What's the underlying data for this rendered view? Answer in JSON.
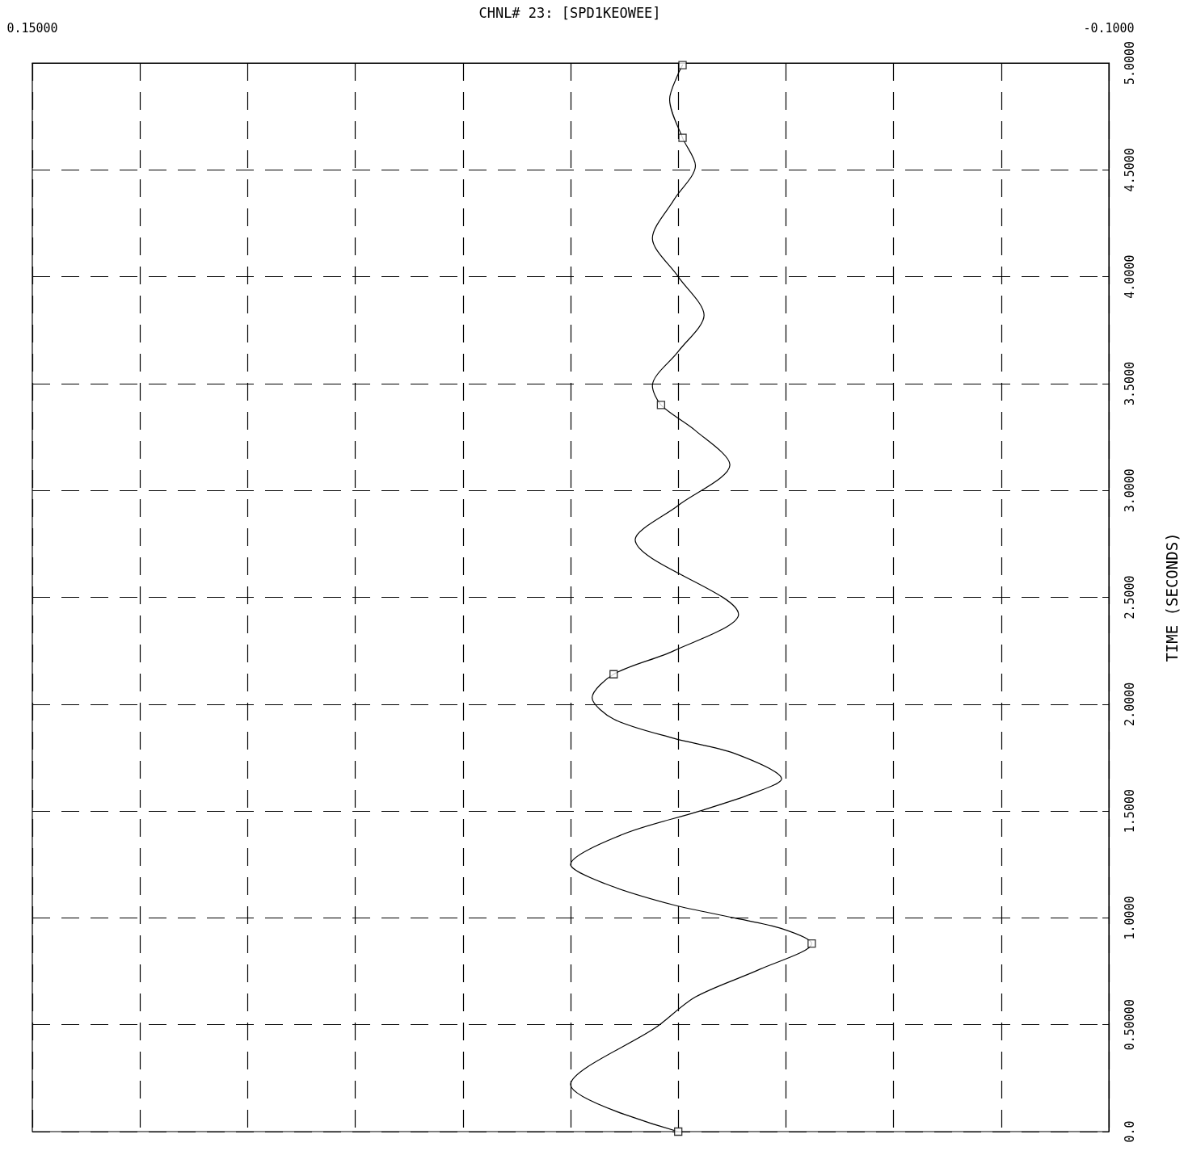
{
  "chart_data": {
    "type": "line",
    "title": "CHNL# 23: [SPD1KEOWEE]",
    "ylabel": "TIME (SECONDS)",
    "xlim": [
      0.15,
      -0.1
    ],
    "xticks": [
      {
        "value": 0.15,
        "label": "0.15000"
      },
      {
        "value": 0.125,
        "label": null
      },
      {
        "value": 0.1,
        "label": null
      },
      {
        "value": 0.075,
        "label": null
      },
      {
        "value": 0.05,
        "label": null
      },
      {
        "value": 0.025,
        "label": null
      },
      {
        "value": 0,
        "label": null
      },
      {
        "value": -0.025,
        "label": null
      },
      {
        "value": -0.05,
        "label": null
      },
      {
        "value": -0.075,
        "label": null
      },
      {
        "value": -0.1,
        "label": "-0.1000"
      }
    ],
    "ylim": [
      0,
      5
    ],
    "yticks": [
      {
        "value": 0,
        "label": "0.0"
      },
      {
        "value": 0.5,
        "label": "0.50000"
      },
      {
        "value": 1,
        "label": "1.0000"
      },
      {
        "value": 1.5,
        "label": "1.5000"
      },
      {
        "value": 2,
        "label": "2.0000"
      },
      {
        "value": 2.5,
        "label": "2.5000"
      },
      {
        "value": 3,
        "label": "3.0000"
      },
      {
        "value": 3.5,
        "label": "3.5000"
      },
      {
        "value": 4,
        "label": "4.0000"
      },
      {
        "value": 4.5,
        "label": "4.5000"
      },
      {
        "value": 5,
        "label": "5.0000"
      }
    ],
    "grid": true,
    "line_style": "solid",
    "series": [
      {
        "type": "line",
        "color": "#000000",
        "marker": "none",
        "x": [
          0,
          0.025,
          0.005,
          -0.004,
          -0.019,
          -0.031,
          -0.024,
          -0.013,
          0.001,
          0.017,
          0.025,
          0.013,
          -0.005,
          -0.017,
          -0.024,
          -0.013,
          0.001,
          0.015,
          0.02,
          0.015,
          0.001,
          -0.014,
          0.01,
          0.0,
          -0.012,
          -0.004,
          0.004,
          0.006,
          0.0,
          -0.006,
          0.0,
          0.006,
          0.001,
          -0.004,
          -0.001,
          0.002,
          0.0,
          -0.001
        ],
        "values": [
          0,
          0.22,
          0.49,
          0.63,
          0.76,
          0.88,
          0.95,
          1.0,
          1.06,
          1.16,
          1.25,
          1.39,
          1.5,
          1.58,
          1.65,
          1.77,
          1.84,
          1.93,
          2.03,
          2.14,
          2.25,
          2.42,
          2.77,
          2.93,
          3.12,
          3.28,
          3.4,
          3.49,
          3.65,
          3.82,
          4.0,
          4.18,
          4.36,
          4.52,
          4.65,
          4.83,
          4.95,
          4.99
        ]
      },
      {
        "type": "scatter",
        "color": "#000000",
        "marker": "square",
        "x": [
          0,
          -0.031,
          0.015,
          0.004,
          -0.001,
          -0.001
        ],
        "values": [
          0,
          0.88,
          2.14,
          3.4,
          4.65,
          4.99
        ]
      }
    ]
  }
}
